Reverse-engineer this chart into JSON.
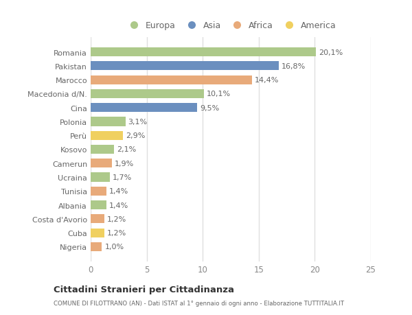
{
  "categories": [
    "Romania",
    "Pakistan",
    "Marocco",
    "Macedonia d/N.",
    "Cina",
    "Polonia",
    "Perù",
    "Kosovo",
    "Camerun",
    "Ucraina",
    "Tunisia",
    "Albania",
    "Costa d'Avorio",
    "Cuba",
    "Nigeria"
  ],
  "values": [
    20.1,
    16.8,
    14.4,
    10.1,
    9.5,
    3.1,
    2.9,
    2.1,
    1.9,
    1.7,
    1.4,
    1.4,
    1.2,
    1.2,
    1.0
  ],
  "labels": [
    "20,1%",
    "16,8%",
    "14,4%",
    "10,1%",
    "9,5%",
    "3,1%",
    "2,9%",
    "2,1%",
    "1,9%",
    "1,7%",
    "1,4%",
    "1,4%",
    "1,2%",
    "1,2%",
    "1,0%"
  ],
  "continents": [
    "Europa",
    "Asia",
    "Africa",
    "Europa",
    "Asia",
    "Europa",
    "America",
    "Europa",
    "Africa",
    "Europa",
    "Africa",
    "Europa",
    "Africa",
    "America",
    "Africa"
  ],
  "continent_colors": {
    "Europa": "#adc98a",
    "Asia": "#6b8fbf",
    "Africa": "#e8aa7a",
    "America": "#f0d060"
  },
  "legend_order": [
    "Europa",
    "Asia",
    "Africa",
    "America"
  ],
  "title": "Cittadini Stranieri per Cittadinanza",
  "subtitle": "COMUNE DI FILOTTRANO (AN) - Dati ISTAT al 1° gennaio di ogni anno - Elaborazione TUTTITALIA.IT",
  "xlim": [
    0,
    25
  ],
  "xticks": [
    0,
    5,
    10,
    15,
    20,
    25
  ],
  "background_color": "#ffffff",
  "plot_bg_color": "#ffffff",
  "grid_color": "#e0e0e0",
  "bar_height": 0.65,
  "label_fontsize": 8.0,
  "ytick_fontsize": 8.0,
  "xtick_fontsize": 8.5
}
